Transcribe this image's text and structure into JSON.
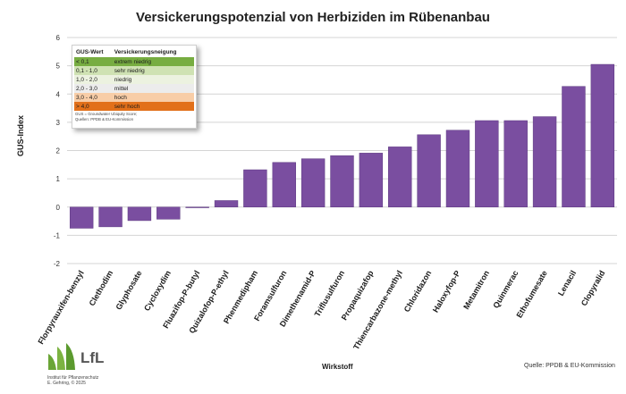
{
  "title": "Versickerungspotenzial von Herbiziden im Rübenanbau",
  "colors": {
    "bar": "#7a4ea0",
    "bar_edge": "#5d3a80",
    "grid": "#d4d4d4"
  },
  "legend": {
    "header": [
      "GUS-Wert",
      "Versickerungsneigung"
    ],
    "rows": [
      {
        "range": "< 0,1",
        "label": "extrem niedrig",
        "color": "#77ad41"
      },
      {
        "range": "0,1 - 1,0",
        "label": "sehr niedrig",
        "color": "#cfe2b3"
      },
      {
        "range": "1,0 - 2,0",
        "label": "niedrig",
        "color": "#ecf2e0"
      },
      {
        "range": "2,0 - 3,0",
        "label": "mittel",
        "color": "#ececec"
      },
      {
        "range": "3,0 - 4,0",
        "label": "hoch",
        "color": "#f8cda7"
      },
      {
        "range": "> 4,0",
        "label": "sehr hoch",
        "color": "#e2701a"
      }
    ],
    "footnote_1": "GUS = Groundwater Ubiquity Score;",
    "footnote_2": "Quellen: PPDB & EU-Kommission"
  },
  "logo": {
    "text": "LfL",
    "sub_1": "Institut für Pflanzenschutz",
    "sub_2": "E. Gehring, © 2025"
  },
  "source_note": "Quelle: PPDB & EU-Kommission",
  "chart_data": {
    "type": "bar",
    "title": "Versickerungspotenzial von Herbiziden im Rübenanbau",
    "xlabel": "Wirkstoff",
    "ylabel": "GUS-Index",
    "ylim": [
      -2,
      6
    ],
    "yticks": [
      -2,
      -1,
      0,
      1,
      2,
      3,
      4,
      5,
      6
    ],
    "grid": true,
    "categories": [
      "Florpyrauxifen-benzyl",
      "Clethodim",
      "Glyphosate",
      "Cycloxydim",
      "Fluazifop-P-butyl",
      "Quizalofop-P-ethyl",
      "Phenmedipham",
      "Foramsulfuron",
      "Dimethenamid-P",
      "Triflusulfuron",
      "Propaquizafop",
      "Thiencarbazone-methyl",
      "Chloridazon",
      "Haloxyfop-P",
      "Metamitron",
      "Quinmerac",
      "Ethofumesate",
      "Lenacil",
      "Clopyralid"
    ],
    "values": [
      -0.75,
      -0.7,
      -0.48,
      -0.43,
      0.0,
      0.23,
      1.32,
      1.58,
      1.71,
      1.82,
      1.91,
      2.13,
      2.56,
      2.72,
      3.06,
      3.06,
      3.2,
      4.27,
      5.05
    ]
  }
}
